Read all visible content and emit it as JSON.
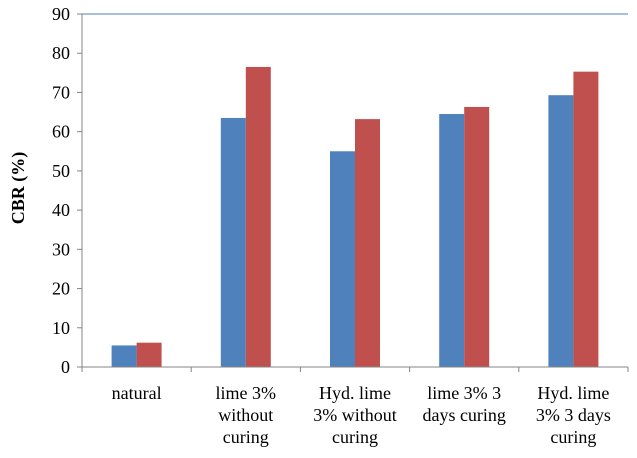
{
  "chart_data": {
    "type": "bar",
    "ylabel": "CBR (%)",
    "xlabel": "",
    "ylim": [
      0,
      90
    ],
    "yticks": [
      0,
      10,
      20,
      30,
      40,
      50,
      60,
      70,
      80,
      90
    ],
    "grid": "top-line-only",
    "legend": "none",
    "categories": [
      [
        "natural"
      ],
      [
        "lime  3%",
        "without",
        "curing"
      ],
      [
        "Hyd. lime",
        "3% without",
        "curing"
      ],
      [
        "lime  3% 3",
        "days curing"
      ],
      [
        "Hyd. lime",
        "3% 3 days",
        "curing"
      ]
    ],
    "series": [
      {
        "color": "#4f81bd",
        "values": [
          5.5,
          63.5,
          55,
          64.5,
          69.3
        ]
      },
      {
        "color": "#c0504d",
        "values": [
          6.2,
          76.5,
          63.2,
          66.3,
          75.3
        ]
      }
    ]
  }
}
